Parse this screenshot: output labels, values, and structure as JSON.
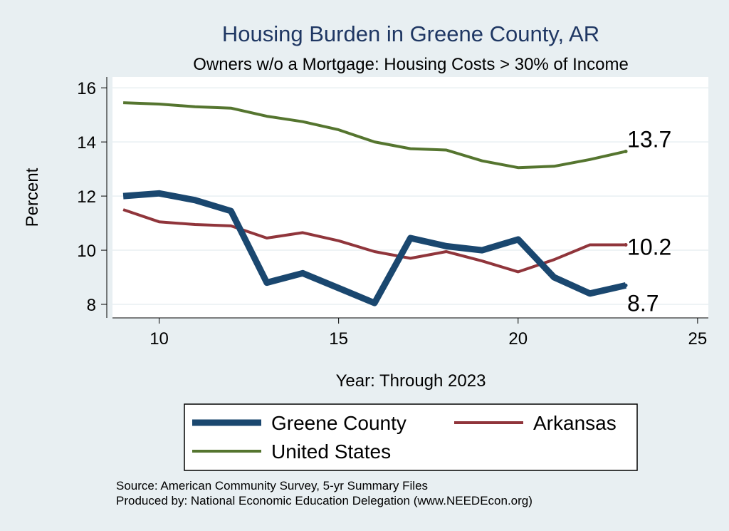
{
  "chart_data": {
    "type": "line",
    "title": "Housing Burden in Greene County, AR",
    "subtitle": "Owners w/o a Mortgage: Housing Costs > 30% of Income",
    "xlabel": "Year: Through 2023",
    "ylabel": "Percent",
    "xlim": [
      8.7,
      25.3
    ],
    "ylim": [
      7.5,
      16.4
    ],
    "xticks": [
      10,
      15,
      20,
      25
    ],
    "yticks": [
      8,
      10,
      12,
      14,
      16
    ],
    "grid": true,
    "x": [
      9,
      10,
      11,
      12,
      13,
      14,
      15,
      16,
      17,
      18,
      19,
      20,
      21,
      22,
      23
    ],
    "series": [
      {
        "name": "Greene County",
        "color": "#1a476f",
        "values": [
          12.0,
          12.1,
          11.85,
          11.45,
          8.8,
          9.15,
          8.6,
          8.05,
          10.45,
          10.15,
          10.0,
          10.4,
          9.0,
          8.4,
          8.7
        ],
        "end_label": "8.7"
      },
      {
        "name": "Arkansas",
        "color": "#90353b",
        "values": [
          11.5,
          11.05,
          10.95,
          10.9,
          10.45,
          10.65,
          10.35,
          9.95,
          9.7,
          9.95,
          9.6,
          9.2,
          9.65,
          10.2,
          10.2
        ],
        "end_label": "10.2"
      },
      {
        "name": "United States",
        "color": "#55752f",
        "values": [
          15.45,
          15.4,
          15.3,
          15.25,
          14.95,
          14.75,
          14.45,
          14.0,
          13.75,
          13.7,
          13.3,
          13.05,
          13.1,
          13.35,
          13.65
        ],
        "end_label": "13.7"
      }
    ],
    "legend": {
      "position": "bottom",
      "entries": [
        "Greene County",
        "Arkansas",
        "United States"
      ]
    },
    "source_lines": [
      "Source: American Community Survey, 5-yr Summary Files",
      "Produced by: National Economic Education Delegation (www.NEEDEcon.org)"
    ]
  }
}
